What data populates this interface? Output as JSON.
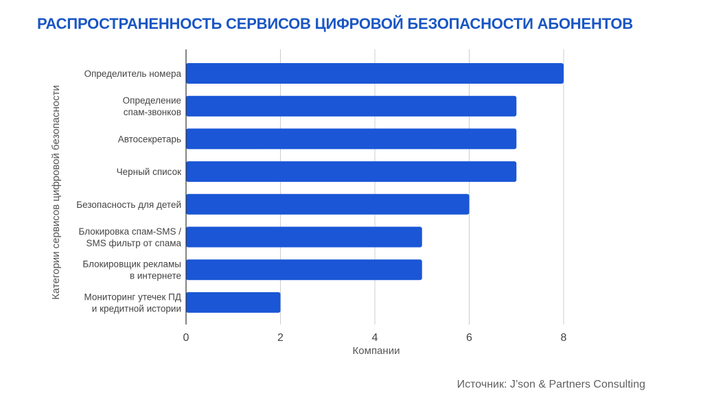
{
  "title": "РАСПРОСТРАНЕННОСТЬ СЕРВИСОВ ЦИФРОВОЙ БЕЗОПАСНОСТИ АБОНЕНТОВ",
  "source": "Источник: J’son & Partners Consulting",
  "colors": {
    "title": "#1a56c4",
    "bar": "#1a56d6",
    "grid": "#cccccc",
    "axis": "#333333"
  },
  "chart_data": {
    "type": "bar",
    "orientation": "horizontal",
    "title": "РАСПРОСТРАНЕННОСТЬ СЕРВИСОВ ЦИФРОВОЙ БЕЗОПАСНОСТИ АБОНЕНТОВ",
    "xlabel": "Компании",
    "ylabel": "Категории сервисов цифровой безопасности",
    "xlim": [
      0,
      8
    ],
    "xticks": [
      0,
      2,
      4,
      6,
      8
    ],
    "grid": true,
    "categories": [
      [
        "Определитель номера"
      ],
      [
        "Определение",
        "спам-звонков"
      ],
      [
        "Автосекретарь"
      ],
      [
        "Черный список"
      ],
      [
        "Безопасность для детей"
      ],
      [
        "Блокировка спам-SMS /",
        "SMS фильтр от спама"
      ],
      [
        "Блокировщик рекламы",
        "в интернете"
      ],
      [
        "Мониторинг утечек ПД",
        "и кредитной истории"
      ]
    ],
    "values": [
      8,
      7,
      7,
      7,
      6,
      5,
      5,
      2
    ]
  }
}
